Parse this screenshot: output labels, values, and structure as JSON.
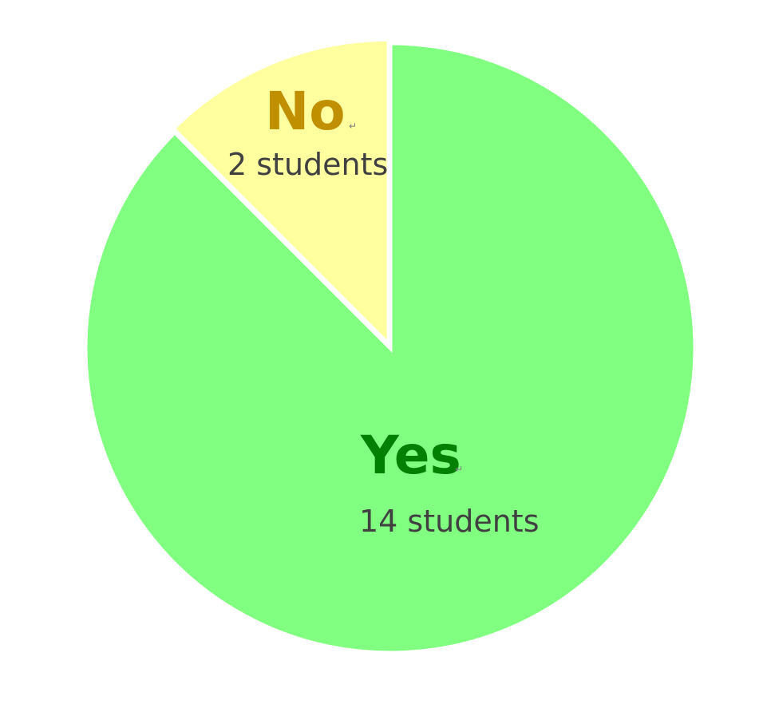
{
  "chart_data": {
    "type": "pie",
    "title": "",
    "slices": [
      {
        "key": "yes",
        "label": "Yes",
        "value": 14,
        "count_text": "14 students",
        "fill": "#80ff80",
        "label_color": "#008000"
      },
      {
        "key": "no",
        "label": "No",
        "value": 2,
        "count_text": "2 students",
        "fill": "#ffffa0",
        "label_color": "#c09000"
      }
    ],
    "legend": "none",
    "start_angle_deg": 0,
    "direction": "clockwise",
    "explode_slice": "no"
  },
  "decor": {
    "return_glyph": "↵"
  }
}
